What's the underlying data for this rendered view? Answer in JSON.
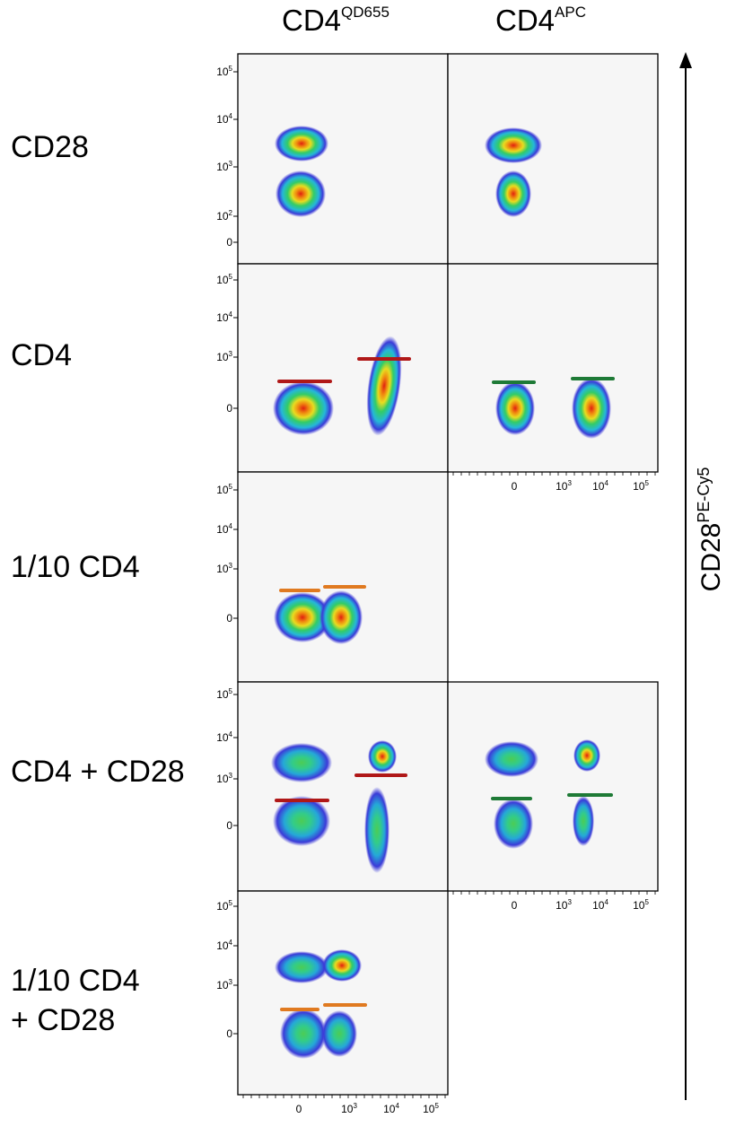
{
  "headers": {
    "col1_main": "CD4",
    "col1_sup": "QD655",
    "col2_main": "CD4",
    "col2_sup": "APC"
  },
  "row_labels": {
    "r1": "CD28",
    "r2": "CD4",
    "r3": "1/10  CD4",
    "r4": "CD4 + CD28",
    "r5_line1": "1/10  CD4",
    "r5_line2": "+ CD28"
  },
  "y_axis_title": {
    "main": "CD28",
    "sup": "PE-Cy5"
  },
  "colors": {
    "panel_bg": "#f6f6f6",
    "gate_red": "#b01818",
    "gate_green": "#1e7a36",
    "gate_orange": "#e07a20",
    "density_low": "#3b3bd8",
    "density_mid": "#33cc66",
    "density_high": "#e02010"
  },
  "chart_data": {
    "type": "scatter",
    "panels": [
      {
        "row": 1,
        "column": "CD4 QD655",
        "y_ticks": [
          "0",
          "10^2",
          "10^3",
          "10^4",
          "10^5"
        ],
        "populations": [
          "CD28 high",
          "CD28 low"
        ]
      },
      {
        "row": 1,
        "column": "CD4 APC",
        "y_ticks": [
          "0",
          "10^2",
          "10^3",
          "10^4",
          "10^5"
        ],
        "populations": [
          "CD28 high",
          "CD28 low"
        ]
      },
      {
        "row": 2,
        "column": "CD4 QD655",
        "y_ticks": [
          "0",
          "10^3",
          "10^4",
          "10^5"
        ],
        "gates": 2,
        "gate_color": "red"
      },
      {
        "row": 2,
        "column": "CD4 APC",
        "y_ticks": [
          "0",
          "10^3",
          "10^4",
          "10^5"
        ],
        "x_ticks": [
          "0",
          "10^3",
          "10^4",
          "10^5"
        ],
        "gates": 2,
        "gate_color": "green"
      },
      {
        "row": 3,
        "column": "CD4 QD655",
        "y_ticks": [
          "0",
          "10^3",
          "10^4",
          "10^5"
        ],
        "gates": 2,
        "gate_color": "orange"
      },
      {
        "row": 4,
        "column": "CD4 QD655",
        "y_ticks": [
          "0",
          "10^3",
          "10^4",
          "10^5"
        ],
        "gates": 2,
        "gate_color": "red"
      },
      {
        "row": 4,
        "column": "CD4 APC",
        "x_ticks": [
          "0",
          "10^3",
          "10^4",
          "10^5"
        ],
        "gates": 2,
        "gate_color": "green"
      },
      {
        "row": 5,
        "column": "CD4 QD655",
        "y_ticks": [
          "0",
          "10^3",
          "10^4",
          "10^5"
        ],
        "x_ticks": [
          "0",
          "10^3",
          "10^4",
          "10^5"
        ],
        "gates": 2,
        "gate_color": "orange"
      }
    ]
  }
}
